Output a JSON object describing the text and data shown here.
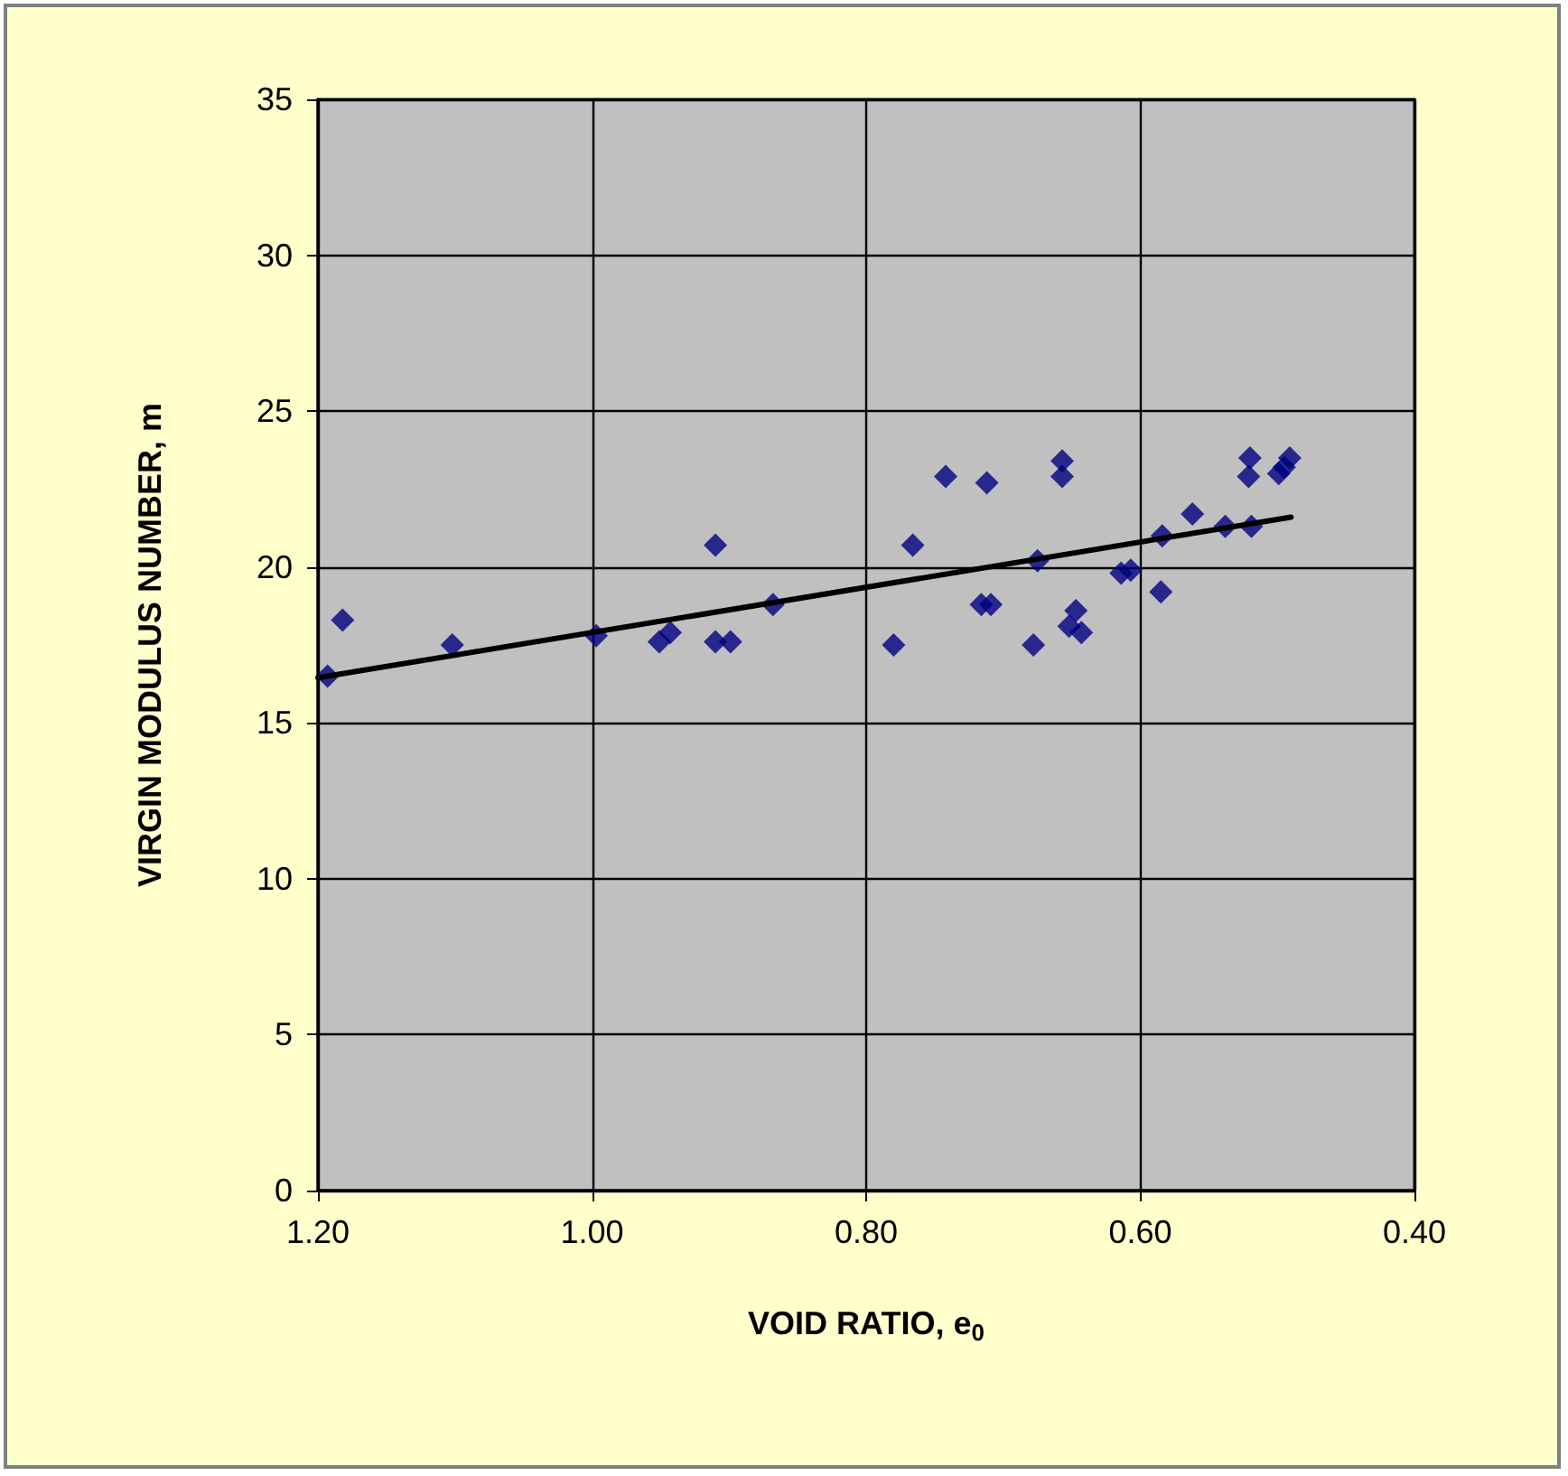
{
  "chart_data": {
    "type": "scatter",
    "xlabel": "VOID RATIO, e$_{0}$",
    "ylabel": "VIRGIN MODULUS NUMBER, m",
    "xlim": [
      1.2,
      0.4
    ],
    "xticks": [
      {
        "value": 1.2,
        "label": "1.20"
      },
      {
        "value": 1.0,
        "label": "1.00"
      },
      {
        "value": 0.8,
        "label": "0.80"
      },
      {
        "value": 0.6,
        "label": "0.60"
      },
      {
        "value": 0.4,
        "label": "0.40"
      }
    ],
    "ylim": [
      0,
      35
    ],
    "yticks": [
      0,
      5,
      10,
      15,
      20,
      25,
      30,
      35
    ],
    "grid": true,
    "series": [
      {
        "marker": "diamond",
        "color": "#000080",
        "x": [
          1.193,
          1.182,
          1.102,
          0.997,
          0.951,
          0.943,
          0.91,
          0.91,
          0.899,
          0.868,
          0.78,
          0.766,
          0.742,
          0.712,
          0.716,
          0.709,
          0.678,
          0.675,
          0.657,
          0.657,
          0.652,
          0.647,
          0.643,
          0.614,
          0.607,
          0.585,
          0.584,
          0.562,
          0.538,
          0.519,
          0.52,
          0.521,
          0.499,
          0.491,
          0.495
        ],
        "values": [
          16.5,
          18.3,
          17.5,
          17.8,
          17.6,
          17.9,
          20.7,
          17.6,
          17.6,
          18.8,
          17.5,
          20.7,
          22.9,
          22.7,
          18.8,
          18.8,
          17.5,
          20.2,
          23.4,
          22.9,
          18.1,
          18.6,
          17.9,
          19.8,
          19.9,
          19.2,
          21.0,
          21.7,
          21.3,
          21.3,
          23.5,
          22.9,
          23.0,
          23.5,
          23.2
        ]
      },
      {
        "type": "line",
        "marker": "none",
        "line_style": "solid",
        "color": "#000000",
        "x": [
          1.2,
          0.49
        ],
        "values": [
          16.45,
          21.6
        ]
      }
    ]
  }
}
